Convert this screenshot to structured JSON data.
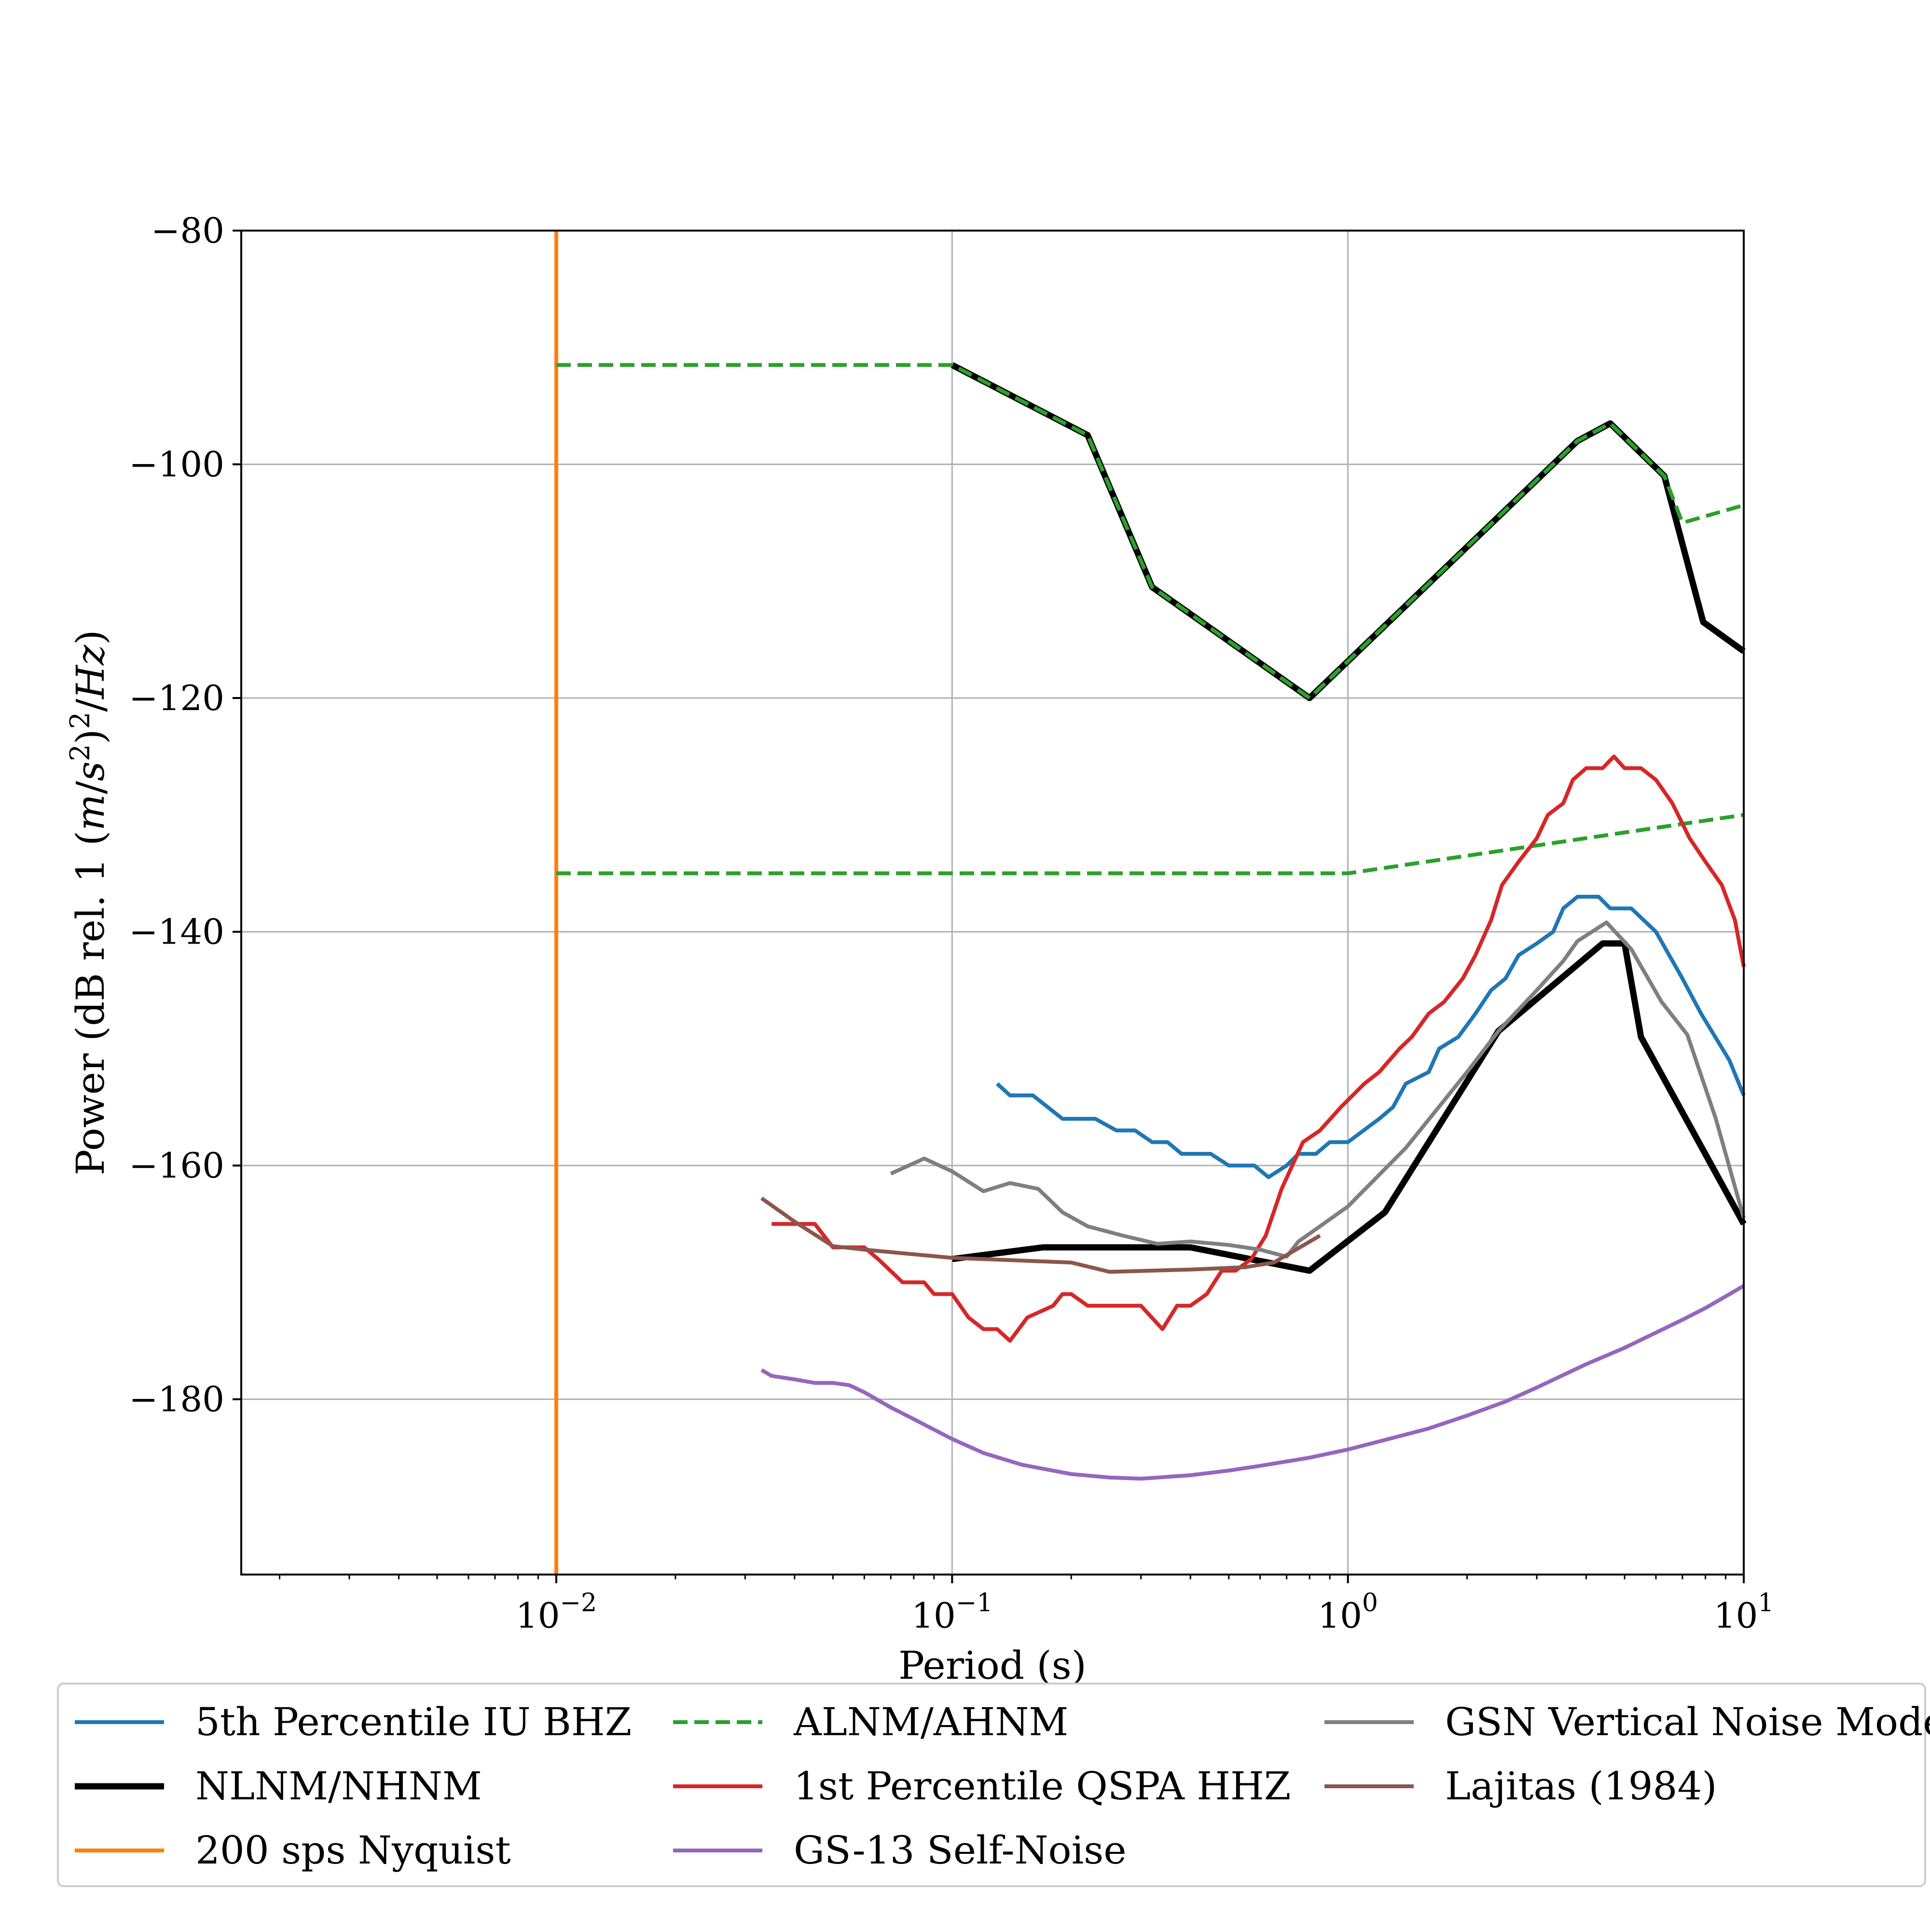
{
  "chart_data": {
    "type": "line",
    "xlabel": "Period (s)",
    "ylabel": "Power (dB rel. 1 (m/s²)²/Hz)",
    "x_scale": "log",
    "xlim": [
      0.0016,
      10
    ],
    "ylim": [
      -195,
      -80
    ],
    "x_ticks": [
      {
        "value": 0.01,
        "base": "10",
        "exp": "−2"
      },
      {
        "value": 0.1,
        "base": "10",
        "exp": "−1"
      },
      {
        "value": 1,
        "base": "10",
        "exp": "0"
      },
      {
        "value": 10,
        "base": "10",
        "exp": "1"
      }
    ],
    "y_ticks": [
      {
        "value": -80,
        "label": "−80"
      },
      {
        "value": -100,
        "label": "−100"
      },
      {
        "value": -120,
        "label": "−120"
      },
      {
        "value": -140,
        "label": "−140"
      },
      {
        "value": -160,
        "label": "−160"
      },
      {
        "value": -180,
        "label": "−180"
      }
    ],
    "grid": true,
    "legend_placement": "bottom",
    "legend_columns": 3,
    "series": [
      {
        "name": "5th Percentile IU BHZ",
        "color": "#1f77b4",
        "style": "solid",
        "points": [
          [
            0.13,
            -153
          ],
          [
            0.14,
            -154
          ],
          [
            0.16,
            -154
          ],
          [
            0.19,
            -156
          ],
          [
            0.23,
            -156
          ],
          [
            0.26,
            -157
          ],
          [
            0.29,
            -157
          ],
          [
            0.32,
            -158
          ],
          [
            0.35,
            -158
          ],
          [
            0.38,
            -159
          ],
          [
            0.45,
            -159
          ],
          [
            0.5,
            -160
          ],
          [
            0.58,
            -160
          ],
          [
            0.63,
            -161
          ],
          [
            0.7,
            -160
          ],
          [
            0.75,
            -159
          ],
          [
            0.83,
            -159
          ],
          [
            0.9,
            -158
          ],
          [
            1.0,
            -158
          ],
          [
            1.2,
            -156
          ],
          [
            1.3,
            -155
          ],
          [
            1.4,
            -153
          ],
          [
            1.6,
            -152
          ],
          [
            1.7,
            -150
          ],
          [
            1.9,
            -149
          ],
          [
            2.1,
            -147
          ],
          [
            2.3,
            -145
          ],
          [
            2.5,
            -144
          ],
          [
            2.7,
            -142
          ],
          [
            3.0,
            -141
          ],
          [
            3.3,
            -140
          ],
          [
            3.5,
            -138
          ],
          [
            3.8,
            -137
          ],
          [
            4.3,
            -137
          ],
          [
            4.6,
            -138
          ],
          [
            5.2,
            -138
          ],
          [
            6.0,
            -140
          ],
          [
            7.0,
            -144
          ],
          [
            7.8,
            -147
          ],
          [
            9.2,
            -151
          ],
          [
            10,
            -154
          ]
        ]
      },
      {
        "name": "NLNM/NHNM",
        "color": "#000000",
        "style": "thick",
        "segments": [
          [
            [
              0.1,
              -91.5
            ],
            [
              0.22,
              -97.5
            ],
            [
              0.32,
              -110.5
            ],
            [
              0.8,
              -120
            ],
            [
              3.8,
              -98
            ],
            [
              4.6,
              -96.5
            ],
            [
              6.3,
              -101
            ],
            [
              7.9,
              -113.5
            ],
            [
              10,
              -116
            ]
          ],
          [
            [
              0.1,
              -168
            ],
            [
              0.17,
              -167
            ],
            [
              0.4,
              -167
            ],
            [
              0.8,
              -169
            ],
            [
              1.24,
              -164
            ],
            [
              2.4,
              -148.5
            ],
            [
              4.4,
              -141
            ],
            [
              5.0,
              -141
            ],
            [
              5.5,
              -149
            ],
            [
              10,
              -165
            ]
          ]
        ]
      },
      {
        "name": "200 sps Nyquist",
        "color": "#ff7f0e",
        "style": "solid",
        "points": [
          [
            0.01,
            -80
          ],
          [
            0.01,
            -195
          ]
        ]
      },
      {
        "name": "ALNM/AHNM",
        "color": "#2ca02c",
        "style": "dashed",
        "segments": [
          [
            [
              0.01,
              -91.5
            ],
            [
              0.1,
              -91.5
            ],
            [
              0.22,
              -97.5
            ],
            [
              0.32,
              -110.5
            ],
            [
              0.8,
              -120
            ],
            [
              3.8,
              -98
            ],
            [
              4.6,
              -96.5
            ],
            [
              6.3,
              -101
            ],
            [
              7.0,
              -105
            ],
            [
              10,
              -103.5
            ]
          ],
          [
            [
              0.01,
              -135
            ],
            [
              1.0,
              -135
            ],
            [
              10,
              -130
            ]
          ]
        ]
      },
      {
        "name": "1st Percentile QSPA HHZ",
        "color": "#d62728",
        "style": "solid",
        "points": [
          [
            0.035,
            -165
          ],
          [
            0.045,
            -165
          ],
          [
            0.05,
            -167
          ],
          [
            0.06,
            -167
          ],
          [
            0.065,
            -168
          ],
          [
            0.075,
            -170
          ],
          [
            0.085,
            -170
          ],
          [
            0.09,
            -171
          ],
          [
            0.1,
            -171
          ],
          [
            0.11,
            -173
          ],
          [
            0.12,
            -174
          ],
          [
            0.13,
            -174
          ],
          [
            0.14,
            -175
          ],
          [
            0.155,
            -173
          ],
          [
            0.18,
            -172
          ],
          [
            0.19,
            -171
          ],
          [
            0.2,
            -171
          ],
          [
            0.22,
            -172
          ],
          [
            0.25,
            -172
          ],
          [
            0.3,
            -172
          ],
          [
            0.34,
            -174
          ],
          [
            0.37,
            -172
          ],
          [
            0.4,
            -172
          ],
          [
            0.44,
            -171
          ],
          [
            0.48,
            -169
          ],
          [
            0.52,
            -169
          ],
          [
            0.57,
            -168
          ],
          [
            0.62,
            -166
          ],
          [
            0.68,
            -162
          ],
          [
            0.77,
            -158
          ],
          [
            0.85,
            -157
          ],
          [
            0.96,
            -155
          ],
          [
            1.1,
            -153
          ],
          [
            1.2,
            -152
          ],
          [
            1.35,
            -150
          ],
          [
            1.45,
            -149
          ],
          [
            1.6,
            -147
          ],
          [
            1.75,
            -146
          ],
          [
            1.95,
            -144
          ],
          [
            2.1,
            -142
          ],
          [
            2.3,
            -139
          ],
          [
            2.45,
            -136
          ],
          [
            2.7,
            -134
          ],
          [
            3.0,
            -132
          ],
          [
            3.2,
            -130
          ],
          [
            3.5,
            -129
          ],
          [
            3.7,
            -127
          ],
          [
            4.0,
            -126
          ],
          [
            4.4,
            -126
          ],
          [
            4.7,
            -125
          ],
          [
            5.0,
            -126
          ],
          [
            5.5,
            -126
          ],
          [
            6.0,
            -127
          ],
          [
            6.6,
            -129
          ],
          [
            7.3,
            -132
          ],
          [
            8.0,
            -134
          ],
          [
            8.8,
            -136
          ],
          [
            9.5,
            -139
          ],
          [
            10,
            -143
          ]
        ]
      },
      {
        "name": "GS-13 Self-Noise",
        "color": "#9467bd",
        "style": "solid",
        "points": [
          [
            0.033,
            -177.5
          ],
          [
            0.035,
            -178
          ],
          [
            0.04,
            -178.3
          ],
          [
            0.045,
            -178.6
          ],
          [
            0.05,
            -178.6
          ],
          [
            0.055,
            -178.8
          ],
          [
            0.06,
            -179.4
          ],
          [
            0.07,
            -180.7
          ],
          [
            0.08,
            -181.7
          ],
          [
            0.1,
            -183.4
          ],
          [
            0.12,
            -184.6
          ],
          [
            0.15,
            -185.6
          ],
          [
            0.2,
            -186.4
          ],
          [
            0.25,
            -186.7
          ],
          [
            0.3,
            -186.8
          ],
          [
            0.4,
            -186.5
          ],
          [
            0.5,
            -186.1
          ],
          [
            0.6,
            -185.7
          ],
          [
            0.8,
            -185
          ],
          [
            1.0,
            -184.3
          ],
          [
            1.3,
            -183.3
          ],
          [
            1.6,
            -182.5
          ],
          [
            2.0,
            -181.4
          ],
          [
            2.5,
            -180.2
          ],
          [
            3.0,
            -179
          ],
          [
            4.0,
            -177
          ],
          [
            5.0,
            -175.6
          ],
          [
            6.0,
            -174.3
          ],
          [
            7.0,
            -173.2
          ],
          [
            8.0,
            -172.2
          ],
          [
            9.0,
            -171.2
          ],
          [
            10,
            -170.3
          ]
        ]
      },
      {
        "name": "GSN Vertical Noise Model",
        "color": "#7f7f7f",
        "style": "solid",
        "points": [
          [
            0.07,
            -160.7
          ],
          [
            0.085,
            -159.4
          ],
          [
            0.1,
            -160.5
          ],
          [
            0.12,
            -162.2
          ],
          [
            0.14,
            -161.5
          ],
          [
            0.165,
            -162
          ],
          [
            0.19,
            -164
          ],
          [
            0.22,
            -165.2
          ],
          [
            0.27,
            -166
          ],
          [
            0.33,
            -166.7
          ],
          [
            0.4,
            -166.5
          ],
          [
            0.5,
            -166.8
          ],
          [
            0.6,
            -167.2
          ],
          [
            0.7,
            -167.8
          ],
          [
            0.75,
            -166.5
          ],
          [
            0.85,
            -165.2
          ],
          [
            1.0,
            -163.5
          ],
          [
            1.4,
            -158.5
          ],
          [
            2.0,
            -152
          ],
          [
            2.4,
            -148.5
          ],
          [
            3.0,
            -145
          ],
          [
            3.5,
            -142.5
          ],
          [
            3.8,
            -140.8
          ],
          [
            4.5,
            -139.2
          ],
          [
            5.2,
            -141.5
          ],
          [
            6.2,
            -146
          ],
          [
            7.2,
            -148.8
          ],
          [
            8.5,
            -156
          ],
          [
            10,
            -164.5
          ]
        ]
      },
      {
        "name": "Lajitas (1984)",
        "color": "#8c564b",
        "style": "solid",
        "points": [
          [
            0.033,
            -162.8
          ],
          [
            0.04,
            -164.8
          ],
          [
            0.05,
            -166.9
          ],
          [
            0.06,
            -167.2
          ],
          [
            0.1,
            -167.9
          ],
          [
            0.2,
            -168.3
          ],
          [
            0.25,
            -169.1
          ],
          [
            0.4,
            -168.9
          ],
          [
            0.55,
            -168.7
          ],
          [
            0.65,
            -168.3
          ],
          [
            0.85,
            -166
          ]
        ]
      }
    ]
  }
}
